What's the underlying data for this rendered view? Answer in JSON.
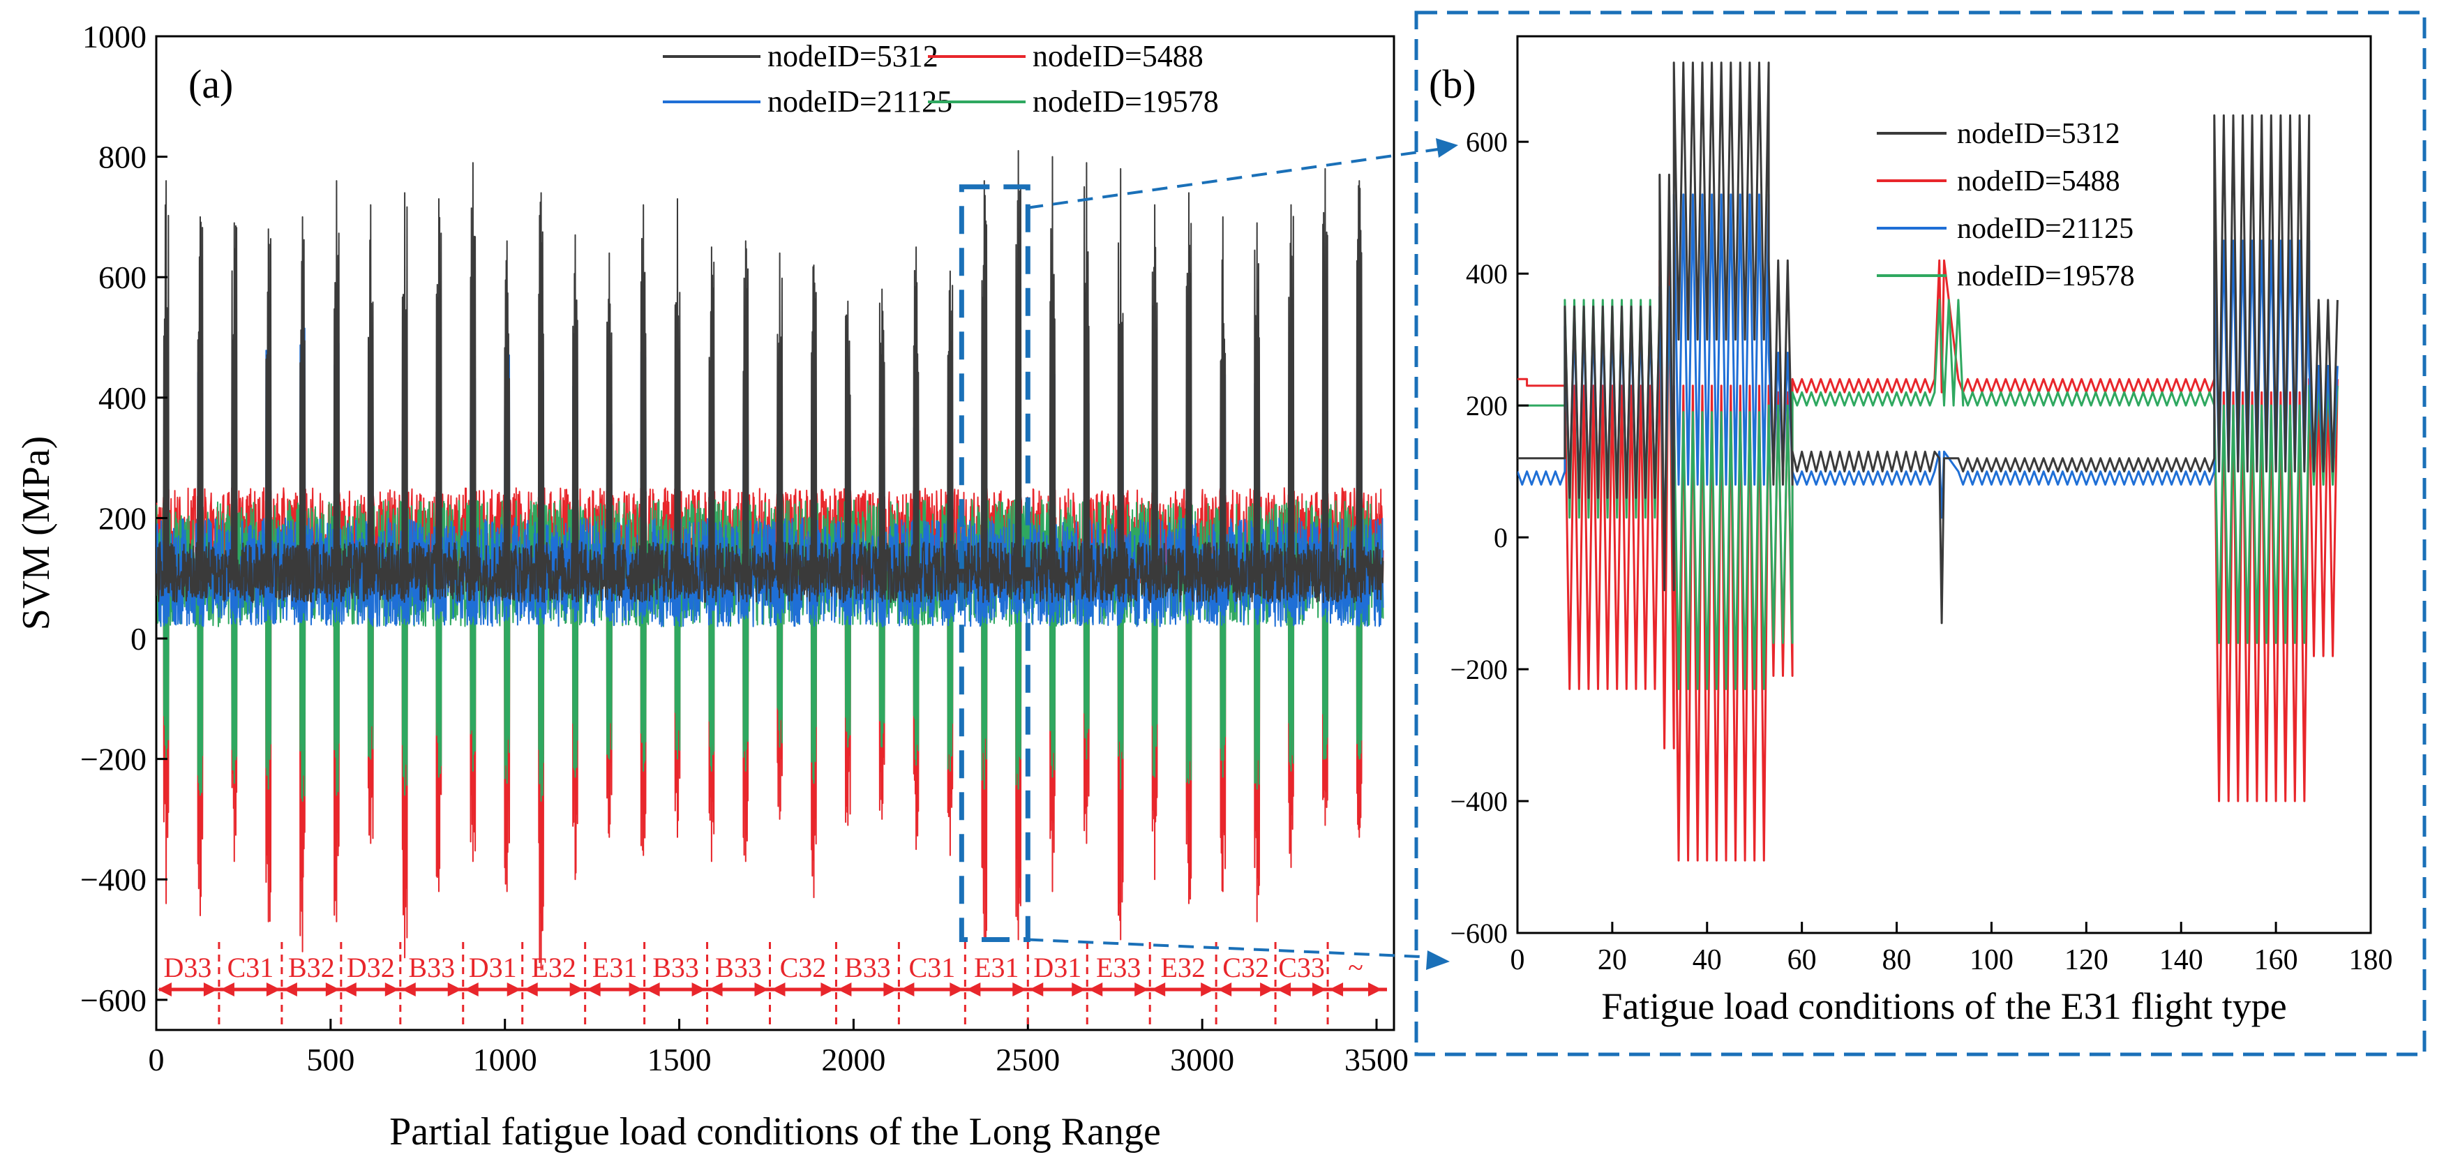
{
  "colors": {
    "s5312": "#3a3a3a",
    "s5488": "#e8262b",
    "s21125": "#1f6fd6",
    "s19578": "#2fa860",
    "callout": "#1a70b8",
    "annot": "#e8262b"
  },
  "chart_data": [
    {
      "id": "a",
      "panel_label": "(a)",
      "type": "line",
      "xlabel": "Partial fatigue load conditions of the Long Range",
      "ylabel": "SVM (MPa)",
      "xlim": [
        0,
        3550
      ],
      "ylim": [
        -650,
        1000
      ],
      "xticks": [
        0,
        500,
        1000,
        1500,
        2000,
        2500,
        3000,
        3500
      ],
      "xtick_labels": [
        "0",
        "500",
        "1000",
        "1500",
        "2000",
        "2500",
        "3000",
        "3500"
      ],
      "yticks": [
        -600,
        -400,
        -200,
        0,
        200,
        400,
        600,
        800,
        1000
      ],
      "ytick_labels": [
        "−600",
        "−400",
        "−200",
        "0",
        "200",
        "400",
        "600",
        "800",
        "1000"
      ],
      "legend": [
        "nodeID=5312",
        "nodeID=5488",
        "nodeID=21125",
        "nodeID=19578"
      ],
      "legend_position": "top-right",
      "series": [
        {
          "name": "nodeID=5312",
          "peaks": [
            760,
            700,
            690,
            680,
            700,
            760,
            720,
            740,
            730,
            790,
            660,
            740,
            670,
            640,
            720,
            730,
            650,
            660,
            640,
            620,
            560,
            580,
            650,
            610,
            760,
            810,
            800,
            790,
            780,
            720,
            740,
            700,
            690,
            720,
            780,
            760
          ],
          "band": [
            60,
            160
          ]
        },
        {
          "name": "nodeID=5488",
          "troughs": [
            -440,
            -460,
            -370,
            -470,
            -520,
            -470,
            -340,
            -530,
            -420,
            -370,
            -420,
            -550,
            -400,
            -330,
            -360,
            -330,
            -370,
            -370,
            -300,
            -430,
            -310,
            -300,
            -350,
            -360,
            -500,
            -500,
            -420,
            -340,
            -500,
            -400,
            -440,
            -420,
            -470,
            -380,
            -310,
            -330
          ],
          "band": [
            80,
            250
          ]
        },
        {
          "name": "nodeID=21125",
          "peaks": [
            380,
            500,
            400,
            480,
            520,
            520,
            480,
            500,
            450,
            520,
            480,
            500,
            460,
            420,
            480,
            460,
            420,
            430,
            420,
            380,
            350,
            350,
            380,
            400,
            480,
            520,
            510,
            500,
            500,
            480,
            490,
            470,
            460,
            480,
            500,
            500
          ],
          "band": [
            20,
            200
          ]
        },
        {
          "name": "nodeID=19578",
          "troughs": [
            -200,
            -260,
            -240,
            -250,
            -270,
            -260,
            -200,
            -260,
            -230,
            -220,
            -240,
            -270,
            -230,
            -200,
            -220,
            -200,
            -220,
            -220,
            -180,
            -240,
            -180,
            -180,
            -210,
            -220,
            -250,
            -250,
            -230,
            -200,
            -250,
            -230,
            -240,
            -230,
            -250,
            -220,
            -200,
            -200
          ],
          "band": [
            20,
            230
          ]
        }
      ],
      "segments": [
        {
          "label": "D33",
          "x0": 0,
          "x1": 180
        },
        {
          "label": "C31",
          "x0": 180,
          "x1": 360
        },
        {
          "label": "B32",
          "x0": 360,
          "x1": 530
        },
        {
          "label": "D32",
          "x0": 530,
          "x1": 700
        },
        {
          "label": "B33",
          "x0": 700,
          "x1": 880
        },
        {
          "label": "D31",
          "x0": 880,
          "x1": 1050
        },
        {
          "label": "E32",
          "x0": 1050,
          "x1": 1230
        },
        {
          "label": "E31",
          "x0": 1230,
          "x1": 1400
        },
        {
          "label": "B33",
          "x0": 1400,
          "x1": 1580
        },
        {
          "label": "B33",
          "x0": 1580,
          "x1": 1760
        },
        {
          "label": "C32",
          "x0": 1760,
          "x1": 1950
        },
        {
          "label": "B33",
          "x0": 1950,
          "x1": 2130
        },
        {
          "label": "C31",
          "x0": 2130,
          "x1": 2320
        },
        {
          "label": "E31",
          "x0": 2320,
          "x1": 2500
        },
        {
          "label": "D31",
          "x0": 2500,
          "x1": 2670
        },
        {
          "label": "E33",
          "x0": 2670,
          "x1": 2850
        },
        {
          "label": "E32",
          "x0": 2850,
          "x1": 3040
        },
        {
          "label": "C32",
          "x0": 3040,
          "x1": 3210
        },
        {
          "label": "C33",
          "x0": 3210,
          "x1": 3360
        },
        {
          "label": "~",
          "x0": 3360,
          "x1": 3520
        }
      ],
      "zoom_box": {
        "x": [
          2310,
          2500
        ],
        "y": [
          -500,
          750
        ]
      }
    },
    {
      "id": "b",
      "panel_label": "(b)",
      "type": "line",
      "xlabel": "Fatigue load conditions of the E31 flight type",
      "ylabel": "",
      "xlim": [
        0,
        180
      ],
      "ylim": [
        -600,
        760
      ],
      "xticks": [
        0,
        20,
        40,
        60,
        80,
        100,
        120,
        140,
        160,
        180
      ],
      "xtick_labels": [
        "0",
        "20",
        "40",
        "60",
        "80",
        "100",
        "120",
        "140",
        "160",
        "180"
      ],
      "yticks": [
        -600,
        -400,
        -200,
        0,
        200,
        400,
        600
      ],
      "ytick_labels": [
        "−600",
        "−400",
        "−200",
        "0",
        "200",
        "400",
        "600"
      ],
      "legend": [
        "nodeID=5312",
        "nodeID=5488",
        "nodeID=21125",
        "nodeID=19578"
      ],
      "legend_position": "top-center",
      "series": [
        {
          "name": "nodeID=5312",
          "blocks": [
            [
              0,
              10,
              120,
              120
            ],
            [
              10,
              30,
              350,
              60
            ],
            [
              30,
              33,
              550,
              -80
            ],
            [
              33,
              53,
              720,
              300
            ],
            [
              53,
              58,
              420,
              80
            ],
            [
              58,
              88,
              130,
              100
            ],
            [
              89,
              90,
              120,
              -130
            ],
            [
              93,
              147,
              120,
              100
            ],
            [
              147,
              167,
              640,
              100
            ],
            [
              167,
              173,
              360,
              100
            ]
          ]
        },
        {
          "name": "nodeID=5488",
          "blocks": [
            [
              0,
              2,
              240,
              240
            ],
            [
              2,
              10,
              230,
              230
            ],
            [
              10,
              30,
              230,
              -230
            ],
            [
              30,
              33,
              420,
              -320
            ],
            [
              33,
              53,
              230,
              -490
            ],
            [
              53,
              58,
              220,
              -210
            ],
            [
              58,
              88,
              240,
              220
            ],
            [
              89,
              90,
              420,
              220
            ],
            [
              93,
              147,
              240,
              220
            ],
            [
              147,
              167,
              220,
              -400
            ],
            [
              167,
              173,
              240,
              -180
            ]
          ]
        },
        {
          "name": "nodeID=21125",
          "blocks": [
            [
              0,
              10,
              100,
              80
            ],
            [
              10,
              30,
              320,
              70
            ],
            [
              30,
              33,
              380,
              -20
            ],
            [
              33,
              53,
              520,
              80
            ],
            [
              53,
              58,
              280,
              100
            ],
            [
              58,
              88,
              100,
              80
            ],
            [
              89,
              90,
              130,
              30
            ],
            [
              93,
              147,
              100,
              80
            ],
            [
              147,
              167,
              450,
              100
            ],
            [
              167,
              173,
              260,
              100
            ]
          ]
        },
        {
          "name": "nodeID=19578",
          "blocks": [
            [
              0,
              10,
              200,
              200
            ],
            [
              10,
              30,
              360,
              30
            ],
            [
              30,
              33,
              370,
              -50
            ],
            [
              33,
              53,
              190,
              -230
            ],
            [
              53,
              58,
              200,
              -160
            ],
            [
              58,
              88,
              220,
              200
            ],
            [
              89,
              94,
              360,
              200
            ],
            [
              94,
              147,
              220,
              200
            ],
            [
              147,
              167,
              200,
              -160
            ],
            [
              167,
              173,
              230,
              80
            ]
          ]
        }
      ]
    }
  ]
}
